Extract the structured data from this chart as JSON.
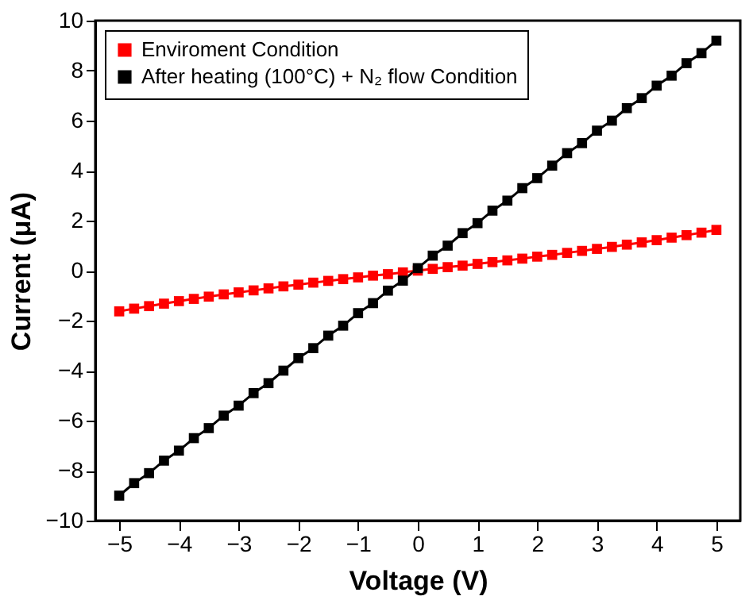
{
  "chart_data": {
    "type": "line",
    "xlabel": "Voltage (V)",
    "ylabel": "Current (μA)",
    "x": [
      -5,
      -4.75,
      -4.5,
      -4.25,
      -4,
      -3.75,
      -3.5,
      -3.25,
      -3,
      -2.75,
      -2.5,
      -2.25,
      -2,
      -1.75,
      -1.5,
      -1.25,
      -1,
      -0.75,
      -0.5,
      -0.25,
      0,
      0.25,
      0.5,
      0.75,
      1,
      1.25,
      1.5,
      1.75,
      2,
      2.25,
      2.5,
      2.75,
      3,
      3.25,
      3.5,
      3.75,
      4,
      4.25,
      4.5,
      4.75,
      5
    ],
    "series": [
      {
        "name": "Enviroment Condition",
        "color": "#ff0000",
        "values": [
          -1.63,
          -1.52,
          -1.42,
          -1.32,
          -1.22,
          -1.13,
          -1.04,
          -0.95,
          -0.87,
          -0.79,
          -0.71,
          -0.63,
          -0.56,
          -0.48,
          -0.41,
          -0.34,
          -0.27,
          -0.2,
          -0.14,
          -0.07,
          0,
          0.07,
          0.14,
          0.2,
          0.27,
          0.34,
          0.41,
          0.48,
          0.56,
          0.63,
          0.71,
          0.79,
          0.87,
          0.95,
          1.04,
          1.13,
          1.22,
          1.32,
          1.42,
          1.52,
          1.63
        ]
      },
      {
        "name": "After heating (100°C) + N₂ flow Condition",
        "color": "#000000",
        "values": [
          -9.0,
          -8.5,
          -8.1,
          -7.6,
          -7.2,
          -6.7,
          -6.3,
          -5.8,
          -5.4,
          -4.9,
          -4.5,
          -4.0,
          -3.5,
          -3.1,
          -2.6,
          -2.2,
          -1.7,
          -1.3,
          -0.8,
          -0.4,
          0.1,
          0.6,
          1.0,
          1.5,
          1.9,
          2.4,
          2.8,
          3.3,
          3.7,
          4.2,
          4.7,
          5.1,
          5.6,
          6.0,
          6.5,
          6.9,
          7.4,
          7.8,
          8.3,
          8.7,
          9.2
        ]
      }
    ],
    "xlim": [
      -5.4,
      5.4
    ],
    "xticks": [
      -5,
      -4,
      -3,
      -2,
      -1,
      0,
      1,
      2,
      3,
      4,
      5
    ],
    "ylim": [
      -10,
      10
    ],
    "yticks": [
      -10,
      -8,
      -6,
      -4,
      -2,
      0,
      2,
      4,
      6,
      8,
      10
    ],
    "grid": false,
    "legend": "top left",
    "marker": "square",
    "line_style": "solid"
  }
}
